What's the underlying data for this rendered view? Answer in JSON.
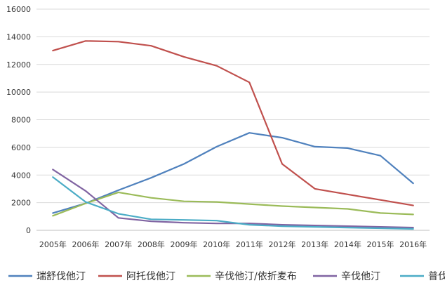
{
  "chart_data": {
    "type": "line",
    "title": "",
    "xlabel": "",
    "ylabel": "",
    "categories": [
      "2005年",
      "2006年",
      "2007年",
      "2008年",
      "2009年",
      "2010年",
      "2011年",
      "2012年",
      "2013年",
      "2014年",
      "2015年",
      "2016年"
    ],
    "ylim": [
      0,
      16000
    ],
    "yticks": [
      0,
      2000,
      4000,
      6000,
      8000,
      10000,
      12000,
      14000,
      16000
    ],
    "grid": true,
    "legend_position": "bottom",
    "series": [
      {
        "name": "瑞舒伐他汀",
        "color": "#4f81bd",
        "values": [
          1250,
          1950,
          2900,
          3800,
          4800,
          6050,
          7050,
          6700,
          6050,
          5950,
          5400,
          3400
        ]
      },
      {
        "name": "阿托伐他汀",
        "color": "#c0504d",
        "values": [
          13000,
          13700,
          13650,
          13350,
          12550,
          11900,
          10700,
          4800,
          3000,
          2600,
          2200,
          1800
        ]
      },
      {
        "name": "辛伐他汀/依折麦布",
        "color": "#9bbb59",
        "values": [
          1050,
          1950,
          2750,
          2350,
          2100,
          2050,
          1900,
          1750,
          1650,
          1550,
          1250,
          1150
        ]
      },
      {
        "name": "辛伐他汀",
        "color": "#8064a2",
        "values": [
          4400,
          2850,
          900,
          650,
          550,
          500,
          500,
          400,
          350,
          300,
          250,
          200
        ]
      },
      {
        "name": "普伐他汀",
        "color": "#4bacc6",
        "values": [
          3850,
          2050,
          1200,
          800,
          750,
          700,
          400,
          300,
          250,
          200,
          150,
          100
        ]
      }
    ]
  }
}
